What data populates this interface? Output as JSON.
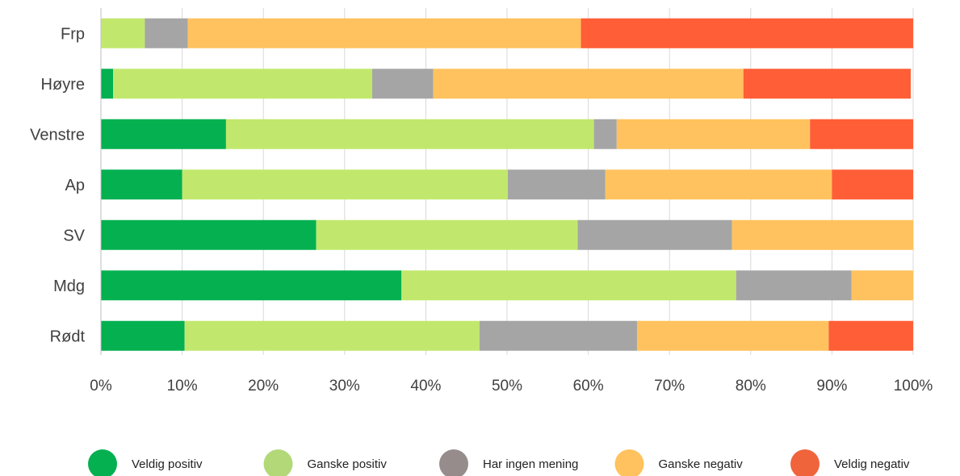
{
  "chart_data": {
    "type": "bar",
    "orientation": "horizontal",
    "stacked": "percent",
    "categories": [
      "Frp",
      "Høyre",
      "Venstre",
      "Ap",
      "SV",
      "Mdg",
      "Rødt"
    ],
    "series": [
      {
        "name": "Veldig positiv",
        "color": "#05b050",
        "legend_color": "#05b050",
        "values": [
          0,
          1.5,
          15.4,
          10,
          26.5,
          37,
          10.3
        ]
      },
      {
        "name": "Ganske positiv",
        "color": "#c1e86d",
        "legend_color": "#b3d878",
        "values": [
          5.4,
          31.9,
          45.3,
          40.1,
          32.2,
          41.2,
          36.3
        ]
      },
      {
        "name": "Har ingen mening",
        "color": "#a5a5a5",
        "legend_color": "#968c8c",
        "values": [
          5.3,
          7.5,
          2.8,
          12,
          19,
          14.2,
          19.4
        ]
      },
      {
        "name": "Ganske negativ",
        "color": "#ffc25e",
        "legend_color": "#ffc25e",
        "values": [
          48.4,
          38.2,
          23.8,
          27.9,
          22.3,
          7.6,
          23.6
        ]
      },
      {
        "name": "Veldig negativ",
        "color": "#ff5e36",
        "legend_color": "#f0643c",
        "values": [
          40.9,
          20.6,
          12.7,
          10,
          0,
          0,
          10.4
        ]
      }
    ],
    "xlim": [
      0,
      100
    ],
    "xticks": [
      "0%",
      "10%",
      "20%",
      "30%",
      "40%",
      "50%",
      "60%",
      "70%",
      "80%",
      "90%",
      "100%"
    ],
    "grid": "vertical",
    "legend": "bottom",
    "title": "",
    "xlabel": "",
    "ylabel": ""
  }
}
